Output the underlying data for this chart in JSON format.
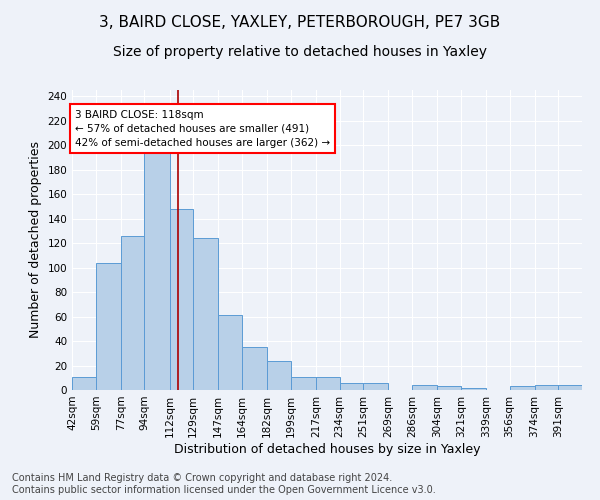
{
  "title": "3, BAIRD CLOSE, YAXLEY, PETERBOROUGH, PE7 3GB",
  "subtitle": "Size of property relative to detached houses in Yaxley",
  "xlabel": "Distribution of detached houses by size in Yaxley",
  "ylabel": "Number of detached properties",
  "bar_edges": [
    42,
    59,
    77,
    94,
    112,
    129,
    147,
    164,
    182,
    199,
    217,
    234,
    251,
    269,
    286,
    304,
    321,
    339,
    356,
    374,
    391
  ],
  "bar_heights": [
    11,
    104,
    126,
    199,
    148,
    124,
    61,
    35,
    24,
    11,
    11,
    6,
    6,
    0,
    4,
    3,
    2,
    0,
    3,
    4,
    4
  ],
  "bar_color": "#b8d0e8",
  "bar_edge_color": "#5b9bd5",
  "property_line_x": 118,
  "annotation_text": "3 BAIRD CLOSE: 118sqm\n← 57% of detached houses are smaller (491)\n42% of semi-detached houses are larger (362) →",
  "annotation_box_color": "white",
  "annotation_box_edge": "red",
  "vline_color": "#aa0000",
  "ylim": [
    0,
    245
  ],
  "yticks": [
    0,
    20,
    40,
    60,
    80,
    100,
    120,
    140,
    160,
    180,
    200,
    220,
    240
  ],
  "tick_labels": [
    "42sqm",
    "59sqm",
    "77sqm",
    "94sqm",
    "112sqm",
    "129sqm",
    "147sqm",
    "164sqm",
    "182sqm",
    "199sqm",
    "217sqm",
    "234sqm",
    "251sqm",
    "269sqm",
    "286sqm",
    "304sqm",
    "321sqm",
    "339sqm",
    "356sqm",
    "374sqm",
    "391sqm"
  ],
  "footer_line1": "Contains HM Land Registry data © Crown copyright and database right 2024.",
  "footer_line2": "Contains public sector information licensed under the Open Government Licence v3.0.",
  "bg_color": "#eef2f9",
  "grid_color": "white",
  "title_fontsize": 11,
  "subtitle_fontsize": 10,
  "axis_label_fontsize": 9,
  "tick_fontsize": 7.5,
  "footer_fontsize": 7,
  "fig_width": 6.0,
  "fig_height": 5.0,
  "fig_dpi": 100
}
